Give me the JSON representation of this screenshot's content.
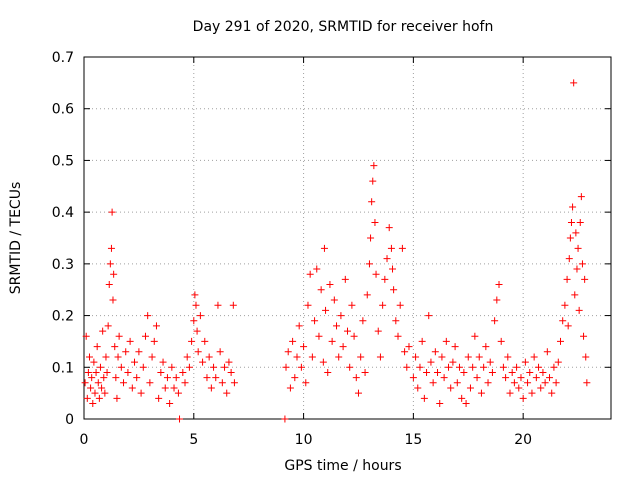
{
  "chart_data": {
    "type": "scatter",
    "title": "Day 291 of 2020, SRMTID for receiver hofn",
    "xlabel": "GPS time / hours",
    "ylabel": "SRMTID / TECUs",
    "xlim": [
      0,
      24
    ],
    "ylim": [
      0,
      0.7
    ],
    "xticks": [
      0,
      5,
      10,
      15,
      20
    ],
    "xtick_labels": [
      "0",
      "5",
      "10",
      "15",
      "20"
    ],
    "yticks": [
      0,
      0.1,
      0.2,
      0.3,
      0.4,
      0.5,
      0.6,
      0.7
    ],
    "ytick_labels": [
      "0",
      "0.1",
      "0.2",
      "0.3",
      "0.4",
      "0.5",
      "0.6",
      "0.7"
    ],
    "grid": true,
    "marker": "+",
    "series": [
      {
        "name": "SRMTID",
        "color": "#ff0000",
        "points": [
          [
            0.05,
            0.07
          ],
          [
            0.1,
            0.16
          ],
          [
            0.15,
            0.04
          ],
          [
            0.2,
            0.09
          ],
          [
            0.25,
            0.12
          ],
          [
            0.3,
            0.06
          ],
          [
            0.35,
            0.08
          ],
          [
            0.4,
            0.03
          ],
          [
            0.45,
            0.11
          ],
          [
            0.5,
            0.05
          ],
          [
            0.55,
            0.09
          ],
          [
            0.6,
            0.14
          ],
          [
            0.65,
            0.07
          ],
          [
            0.7,
            0.04
          ],
          [
            0.75,
            0.1
          ],
          [
            0.8,
            0.06
          ],
          [
            0.85,
            0.17
          ],
          [
            0.9,
            0.08
          ],
          [
            0.95,
            0.05
          ],
          [
            1.0,
            0.12
          ],
          [
            1.05,
            0.09
          ],
          [
            1.1,
            0.18
          ],
          [
            1.15,
            0.26
          ],
          [
            1.2,
            0.3
          ],
          [
            1.25,
            0.33
          ],
          [
            1.28,
            0.4
          ],
          [
            1.32,
            0.23
          ],
          [
            1.35,
            0.28
          ],
          [
            1.4,
            0.14
          ],
          [
            1.45,
            0.08
          ],
          [
            1.5,
            0.04
          ],
          [
            1.55,
            0.12
          ],
          [
            1.6,
            0.16
          ],
          [
            1.7,
            0.1
          ],
          [
            1.8,
            0.07
          ],
          [
            1.9,
            0.13
          ],
          [
            2.0,
            0.09
          ],
          [
            2.1,
            0.15
          ],
          [
            2.2,
            0.06
          ],
          [
            2.3,
            0.11
          ],
          [
            2.4,
            0.08
          ],
          [
            2.5,
            0.13
          ],
          [
            2.6,
            0.05
          ],
          [
            2.7,
            0.1
          ],
          [
            2.8,
            0.16
          ],
          [
            2.9,
            0.2
          ],
          [
            3.0,
            0.07
          ],
          [
            3.1,
            0.12
          ],
          [
            3.2,
            0.15
          ],
          [
            3.3,
            0.18
          ],
          [
            3.4,
            0.04
          ],
          [
            3.5,
            0.09
          ],
          [
            3.6,
            0.11
          ],
          [
            3.7,
            0.06
          ],
          [
            3.8,
            0.08
          ],
          [
            3.9,
            0.03
          ],
          [
            4.0,
            0.1
          ],
          [
            4.1,
            0.06
          ],
          [
            4.2,
            0.08
          ],
          [
            4.3,
            0.05
          ],
          [
            4.35,
            0.0
          ],
          [
            4.5,
            0.09
          ],
          [
            4.6,
            0.07
          ],
          [
            4.7,
            0.12
          ],
          [
            4.8,
            0.1
          ],
          [
            4.9,
            0.15
          ],
          [
            5.0,
            0.19
          ],
          [
            5.05,
            0.24
          ],
          [
            5.1,
            0.22
          ],
          [
            5.15,
            0.17
          ],
          [
            5.2,
            0.13
          ],
          [
            5.3,
            0.2
          ],
          [
            5.4,
            0.11
          ],
          [
            5.5,
            0.15
          ],
          [
            5.6,
            0.08
          ],
          [
            5.7,
            0.12
          ],
          [
            5.8,
            0.06
          ],
          [
            5.9,
            0.1
          ],
          [
            6.0,
            0.08
          ],
          [
            6.1,
            0.22
          ],
          [
            6.2,
            0.13
          ],
          [
            6.3,
            0.07
          ],
          [
            6.4,
            0.1
          ],
          [
            6.5,
            0.05
          ],
          [
            6.6,
            0.11
          ],
          [
            6.7,
            0.09
          ],
          [
            6.8,
            0.22
          ],
          [
            6.85,
            0.07
          ],
          [
            9.15,
            0.0
          ],
          [
            9.2,
            0.1
          ],
          [
            9.3,
            0.13
          ],
          [
            9.4,
            0.06
          ],
          [
            9.5,
            0.15
          ],
          [
            9.6,
            0.08
          ],
          [
            9.7,
            0.12
          ],
          [
            9.8,
            0.18
          ],
          [
            9.9,
            0.1
          ],
          [
            10.0,
            0.14
          ],
          [
            10.1,
            0.07
          ],
          [
            10.2,
            0.22
          ],
          [
            10.3,
            0.28
          ],
          [
            10.4,
            0.12
          ],
          [
            10.5,
            0.19
          ],
          [
            10.6,
            0.29
          ],
          [
            10.7,
            0.16
          ],
          [
            10.8,
            0.25
          ],
          [
            10.9,
            0.11
          ],
          [
            10.95,
            0.33
          ],
          [
            11.0,
            0.21
          ],
          [
            11.1,
            0.09
          ],
          [
            11.2,
            0.26
          ],
          [
            11.3,
            0.15
          ],
          [
            11.4,
            0.23
          ],
          [
            11.5,
            0.18
          ],
          [
            11.6,
            0.12
          ],
          [
            11.7,
            0.2
          ],
          [
            11.8,
            0.14
          ],
          [
            11.9,
            0.27
          ],
          [
            12.0,
            0.17
          ],
          [
            12.1,
            0.1
          ],
          [
            12.2,
            0.22
          ],
          [
            12.3,
            0.16
          ],
          [
            12.4,
            0.08
          ],
          [
            12.5,
            0.05
          ],
          [
            12.6,
            0.12
          ],
          [
            12.7,
            0.19
          ],
          [
            12.8,
            0.09
          ],
          [
            12.9,
            0.24
          ],
          [
            13.0,
            0.3
          ],
          [
            13.05,
            0.35
          ],
          [
            13.1,
            0.42
          ],
          [
            13.15,
            0.46
          ],
          [
            13.2,
            0.49
          ],
          [
            13.25,
            0.38
          ],
          [
            13.3,
            0.28
          ],
          [
            13.4,
            0.17
          ],
          [
            13.5,
            0.12
          ],
          [
            13.6,
            0.22
          ],
          [
            13.7,
            0.27
          ],
          [
            13.8,
            0.31
          ],
          [
            13.9,
            0.37
          ],
          [
            14.0,
            0.33
          ],
          [
            14.05,
            0.29
          ],
          [
            14.1,
            0.25
          ],
          [
            14.2,
            0.19
          ],
          [
            14.3,
            0.16
          ],
          [
            14.4,
            0.22
          ],
          [
            14.5,
            0.33
          ],
          [
            14.6,
            0.13
          ],
          [
            14.7,
            0.1
          ],
          [
            14.8,
            0.14
          ],
          [
            15.0,
            0.08
          ],
          [
            15.1,
            0.12
          ],
          [
            15.2,
            0.06
          ],
          [
            15.3,
            0.1
          ],
          [
            15.4,
            0.15
          ],
          [
            15.5,
            0.04
          ],
          [
            15.6,
            0.09
          ],
          [
            15.7,
            0.2
          ],
          [
            15.8,
            0.11
          ],
          [
            15.9,
            0.07
          ],
          [
            16.0,
            0.13
          ],
          [
            16.1,
            0.09
          ],
          [
            16.2,
            0.03
          ],
          [
            16.3,
            0.12
          ],
          [
            16.4,
            0.08
          ],
          [
            16.5,
            0.15
          ],
          [
            16.6,
            0.1
          ],
          [
            16.7,
            0.06
          ],
          [
            16.8,
            0.11
          ],
          [
            16.9,
            0.14
          ],
          [
            17.0,
            0.07
          ],
          [
            17.1,
            0.1
          ],
          [
            17.2,
            0.04
          ],
          [
            17.3,
            0.09
          ],
          [
            17.4,
            0.03
          ],
          [
            17.5,
            0.12
          ],
          [
            17.6,
            0.06
          ],
          [
            17.7,
            0.1
          ],
          [
            17.8,
            0.16
          ],
          [
            17.9,
            0.08
          ],
          [
            18.0,
            0.12
          ],
          [
            18.1,
            0.05
          ],
          [
            18.2,
            0.1
          ],
          [
            18.3,
            0.14
          ],
          [
            18.4,
            0.07
          ],
          [
            18.5,
            0.11
          ],
          [
            18.6,
            0.09
          ],
          [
            18.7,
            0.19
          ],
          [
            18.8,
            0.23
          ],
          [
            18.9,
            0.26
          ],
          [
            19.0,
            0.15
          ],
          [
            19.1,
            0.1
          ],
          [
            19.2,
            0.08
          ],
          [
            19.3,
            0.12
          ],
          [
            19.4,
            0.05
          ],
          [
            19.5,
            0.09
          ],
          [
            19.6,
            0.07
          ],
          [
            19.7,
            0.1
          ],
          [
            19.8,
            0.06
          ],
          [
            19.9,
            0.08
          ],
          [
            20.0,
            0.04
          ],
          [
            20.1,
            0.11
          ],
          [
            20.2,
            0.07
          ],
          [
            20.3,
            0.09
          ],
          [
            20.4,
            0.05
          ],
          [
            20.5,
            0.12
          ],
          [
            20.6,
            0.08
          ],
          [
            20.7,
            0.1
          ],
          [
            20.8,
            0.06
          ],
          [
            20.9,
            0.09
          ],
          [
            21.0,
            0.07
          ],
          [
            21.1,
            0.13
          ],
          [
            21.2,
            0.08
          ],
          [
            21.3,
            0.05
          ],
          [
            21.4,
            0.1
          ],
          [
            21.5,
            0.07
          ],
          [
            21.6,
            0.11
          ],
          [
            21.7,
            0.15
          ],
          [
            21.8,
            0.19
          ],
          [
            21.9,
            0.22
          ],
          [
            22.0,
            0.27
          ],
          [
            22.05,
            0.18
          ],
          [
            22.1,
            0.31
          ],
          [
            22.15,
            0.35
          ],
          [
            22.2,
            0.38
          ],
          [
            22.25,
            0.41
          ],
          [
            22.3,
            0.65
          ],
          [
            22.35,
            0.24
          ],
          [
            22.4,
            0.36
          ],
          [
            22.45,
            0.29
          ],
          [
            22.5,
            0.33
          ],
          [
            22.55,
            0.21
          ],
          [
            22.6,
            0.38
          ],
          [
            22.65,
            0.43
          ],
          [
            22.7,
            0.3
          ],
          [
            22.75,
            0.16
          ],
          [
            22.8,
            0.27
          ],
          [
            22.85,
            0.12
          ],
          [
            22.9,
            0.07
          ]
        ]
      }
    ]
  }
}
